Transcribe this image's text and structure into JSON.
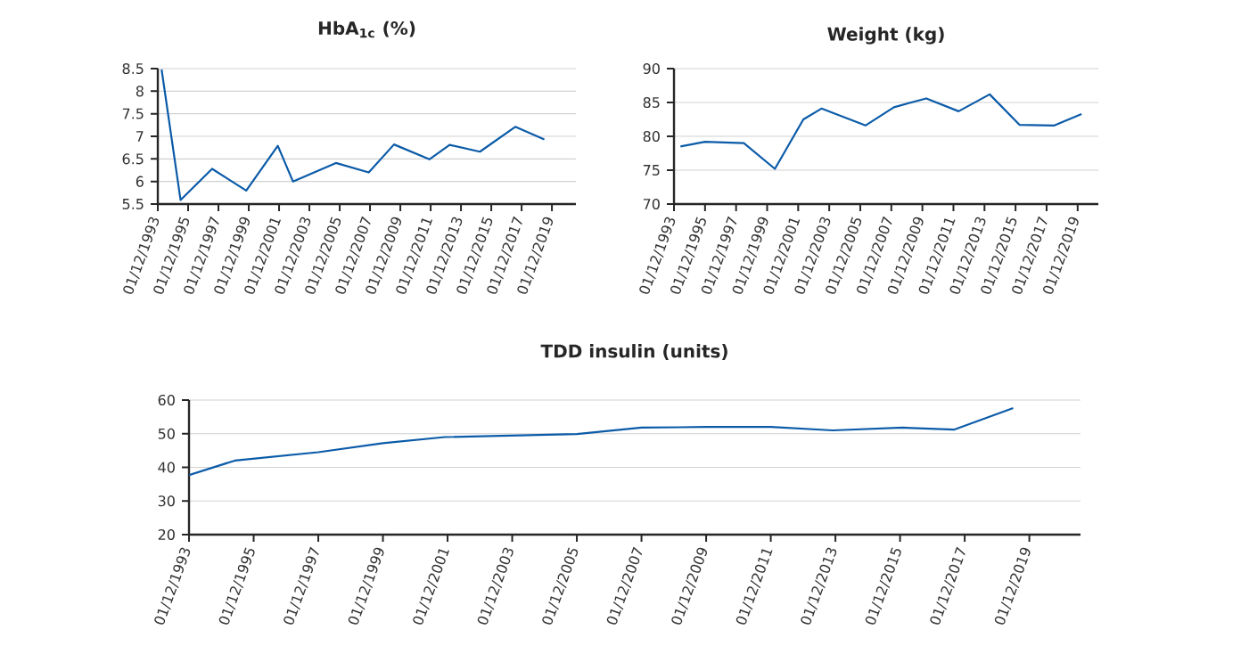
{
  "chart_data": [
    {
      "type": "line",
      "title": "HbA$_{1c}$ (%)",
      "grid": "y",
      "color": "#0b5ba8",
      "x": [
        "1994-03",
        "1995-06",
        "1997-07",
        "1999-10",
        "2001-11",
        "2002-11",
        "2005-09",
        "2007-11",
        "2009-07",
        "2011-11",
        "2013-03",
        "2015-03",
        "2017-07",
        "2019-06"
      ],
      "values": [
        8.48,
        5.59,
        6.28,
        5.8,
        6.79,
        6.0,
        6.41,
        6.2,
        6.82,
        6.49,
        6.81,
        6.66,
        7.21,
        6.93
      ],
      "ylim": [
        5.5,
        8.5
      ],
      "yticks": [
        5.5,
        6,
        6.5,
        7,
        7.5,
        8,
        8.5
      ],
      "xlim": [
        "1993-12-01",
        "2021-07-01"
      ],
      "xticks": [
        {
          "value": "1993-12-01",
          "label": "01/12/1993"
        },
        {
          "value": "1995-12-01",
          "label": "01/12/1995"
        },
        {
          "value": "1997-12-01",
          "label": "01/12/1997"
        },
        {
          "value": "1999-12-01",
          "label": "01/12/1999"
        },
        {
          "value": "2001-12-01",
          "label": "01/12/2001"
        },
        {
          "value": "2003-12-01",
          "label": "01/12/2003"
        },
        {
          "value": "2005-12-01",
          "label": "01/12/2005"
        },
        {
          "value": "2007-12-01",
          "label": "01/12/2007"
        },
        {
          "value": "2009-12-01",
          "label": "01/12/2009"
        },
        {
          "value": "2011-12-01",
          "label": "01/12/2011"
        },
        {
          "value": "2013-12-01",
          "label": "01/12/2013"
        },
        {
          "value": "2015-12-01",
          "label": "01/12/2015"
        },
        {
          "value": "2017-12-01",
          "label": "01/12/2017"
        },
        {
          "value": "2019-12-01",
          "label": "01/12/2019"
        }
      ]
    },
    {
      "type": "line",
      "title": "Weight (kg)",
      "grid": "y",
      "color": "#0b5ba8",
      "x": [
        "1994-05",
        "1995-12",
        "1998-06",
        "2000-06",
        "2002-04",
        "2003-06",
        "2006-04",
        "2008-02",
        "2010-03",
        "2012-04",
        "2014-04",
        "2016-03",
        "2018-06",
        "2020-03"
      ],
      "values": [
        78.5,
        79.2,
        79.0,
        75.2,
        82.5,
        84.1,
        81.6,
        84.3,
        85.6,
        83.7,
        86.2,
        81.7,
        81.6,
        83.3
      ],
      "ylim": [
        70,
        90
      ],
      "yticks": [
        70,
        75,
        80,
        85,
        90
      ],
      "xlim": [
        "1993-12-01",
        "2021-04-01"
      ],
      "xticks": [
        {
          "value": "1993-12-01",
          "label": "01/12/1993"
        },
        {
          "value": "1995-12-01",
          "label": "01/12/1995"
        },
        {
          "value": "1997-12-01",
          "label": "01/12/1997"
        },
        {
          "value": "1999-12-01",
          "label": "01/12/1999"
        },
        {
          "value": "2001-12-01",
          "label": "01/12/2001"
        },
        {
          "value": "2003-12-01",
          "label": "01/12/2003"
        },
        {
          "value": "2005-12-01",
          "label": "01/12/2005"
        },
        {
          "value": "2007-12-01",
          "label": "01/12/2007"
        },
        {
          "value": "2009-12-01",
          "label": "01/12/2009"
        },
        {
          "value": "2011-12-01",
          "label": "01/12/2011"
        },
        {
          "value": "2013-12-01",
          "label": "01/12/2013"
        },
        {
          "value": "2015-12-01",
          "label": "01/12/2015"
        },
        {
          "value": "2017-12-01",
          "label": "01/12/2017"
        },
        {
          "value": "2019-12-01",
          "label": "01/12/2019"
        }
      ]
    },
    {
      "type": "line",
      "title": "TDD insulin (units)",
      "grid": "y",
      "color": "#0b5ba8",
      "x": [
        "1993-12",
        "1995-05",
        "1997-12",
        "1999-12",
        "2001-11",
        "2005-12",
        "2007-12",
        "2009-12",
        "2011-12",
        "2013-11",
        "2016-01",
        "2017-08",
        "2019-06"
      ],
      "values": [
        37.7,
        42.0,
        44.5,
        47.2,
        49.0,
        49.9,
        51.8,
        52.0,
        52.0,
        51.0,
        51.8,
        51.2,
        57.6
      ],
      "ylim": [
        20,
        60
      ],
      "yticks": [
        20,
        30,
        40,
        50,
        60
      ],
      "xlim": [
        "1993-12-01",
        "2021-07-01"
      ],
      "xticks": [
        {
          "value": "1993-12-01",
          "label": "01/12/1993"
        },
        {
          "value": "1995-12-01",
          "label": "01/12/1995"
        },
        {
          "value": "1997-12-01",
          "label": "01/12/1997"
        },
        {
          "value": "1999-12-01",
          "label": "01/12/1999"
        },
        {
          "value": "2001-12-01",
          "label": "01/12/2001"
        },
        {
          "value": "2003-12-01",
          "label": "01/12/2003"
        },
        {
          "value": "2005-12-01",
          "label": "01/12/2005"
        },
        {
          "value": "2007-12-01",
          "label": "01/12/2007"
        },
        {
          "value": "2009-12-01",
          "label": "01/12/2009"
        },
        {
          "value": "2011-12-01",
          "label": "01/12/2011"
        },
        {
          "value": "2013-12-01",
          "label": "01/12/2013"
        },
        {
          "value": "2015-12-01",
          "label": "01/12/2015"
        },
        {
          "value": "2017-12-01",
          "label": "01/12/2017"
        },
        {
          "value": "2019-12-01",
          "label": "01/12/2019"
        }
      ]
    }
  ]
}
